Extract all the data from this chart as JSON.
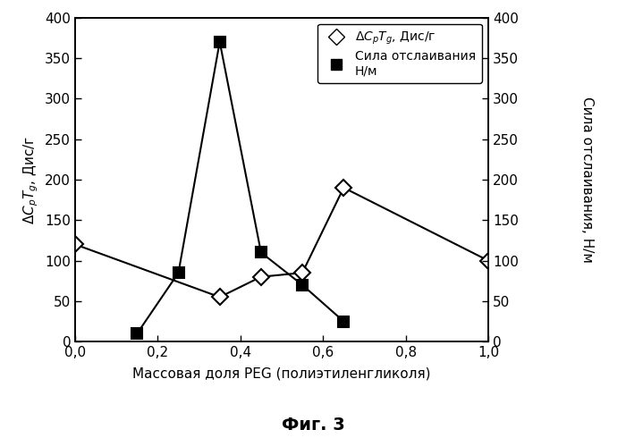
{
  "diamond_x": [
    0.0,
    0.35,
    0.45,
    0.55,
    0.65,
    1.0
  ],
  "diamond_y": [
    120,
    55,
    80,
    85,
    190,
    100
  ],
  "square_x": [
    0.15,
    0.25,
    0.35,
    0.45,
    0.55,
    0.65
  ],
  "square_y": [
    10,
    85,
    370,
    110,
    70,
    25
  ],
  "xlim": [
    0.0,
    1.0
  ],
  "ylim_left": [
    0,
    400
  ],
  "ylim_right": [
    0,
    400
  ],
  "xticks": [
    0.0,
    0.2,
    0.4,
    0.6,
    0.8,
    1.0
  ],
  "xtick_labels": [
    "0,0",
    "0,2",
    "0,4",
    "0,6",
    "0,8",
    "1,0"
  ],
  "xlabel": "Массовая доля PEG (полиэтиленгликоля)",
  "ylabel_left": "$\\Delta C_p T_g$, Дис/г",
  "ylabel_right": "Сила отслаивания, Н/м",
  "legend_diamond": "$\\Delta C_p T_g$, Дис/г",
  "legend_square": "Сила отслаивания\nН/м",
  "figcaption": "Фиг. 3",
  "bg_color": "#ffffff",
  "yticks": [
    0,
    50,
    100,
    150,
    200,
    250,
    300,
    350,
    400
  ]
}
